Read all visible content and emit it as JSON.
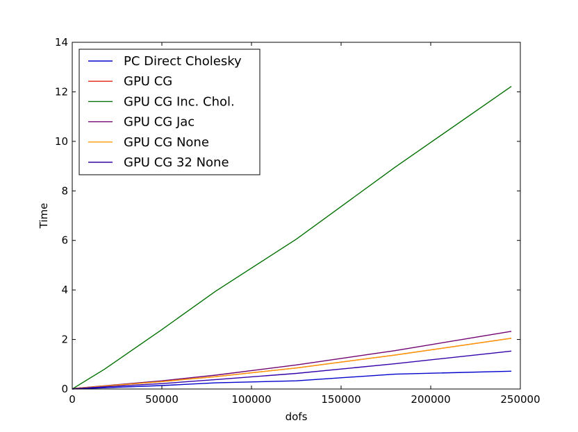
{
  "chart_data": {
    "type": "line",
    "title": "",
    "xlabel": "dofs",
    "ylabel": "Time",
    "xlim": [
      0,
      250000
    ],
    "ylim": [
      0,
      14
    ],
    "x_ticks": [
      0,
      50000,
      100000,
      150000,
      200000,
      250000
    ],
    "y_ticks": [
      0,
      2,
      4,
      6,
      8,
      10,
      12,
      14
    ],
    "x_tick_labels": [
      "0",
      "50000",
      "100000",
      "150000",
      "200000",
      "250000"
    ],
    "y_tick_labels": [
      "0",
      "2",
      "4",
      "6",
      "8",
      "10",
      "12",
      "14"
    ],
    "grid": false,
    "legend_position": "upper-left",
    "series": [
      {
        "name": "PC Direct Cholesky",
        "color": "#0000cc",
        "x": [
          0,
          2000,
          18000,
          50000,
          80000,
          125000,
          180000,
          245000
        ],
        "y": [
          0,
          0.01,
          0.05,
          0.14,
          0.25,
          0.33,
          0.6,
          0.72
        ]
      },
      {
        "name": "GPU CG",
        "color": "#e02010",
        "x": [
          0,
          2000,
          18000,
          50000,
          80000,
          125000,
          180000,
          245000
        ],
        "y": [
          0,
          0.03,
          0.12,
          0.3,
          0.5,
          0.85,
          1.37,
          2.05
        ]
      },
      {
        "name": "GPU CG Inc. Chol.",
        "color": "#007000",
        "x": [
          0,
          2000,
          18000,
          50000,
          80000,
          125000,
          180000,
          245000
        ],
        "y": [
          0,
          0.09,
          0.8,
          2.4,
          3.95,
          6.05,
          8.95,
          12.22
        ]
      },
      {
        "name": "GPU CG Jac",
        "color": "#700070",
        "x": [
          0,
          2000,
          18000,
          50000,
          80000,
          125000,
          180000,
          245000
        ],
        "y": [
          0,
          0.03,
          0.13,
          0.33,
          0.56,
          0.97,
          1.55,
          2.33
        ]
      },
      {
        "name": "GPU CG None",
        "color": "#ff9900",
        "x": [
          0,
          2000,
          18000,
          50000,
          80000,
          125000,
          180000,
          245000
        ],
        "y": [
          0,
          0.03,
          0.12,
          0.3,
          0.5,
          0.85,
          1.37,
          2.05
        ]
      },
      {
        "name": "GPU CG 32 None",
        "color": "#3300aa",
        "x": [
          0,
          2000,
          18000,
          50000,
          80000,
          125000,
          180000,
          245000
        ],
        "y": [
          0,
          0.02,
          0.09,
          0.22,
          0.38,
          0.63,
          1.02,
          1.53
        ]
      }
    ]
  }
}
